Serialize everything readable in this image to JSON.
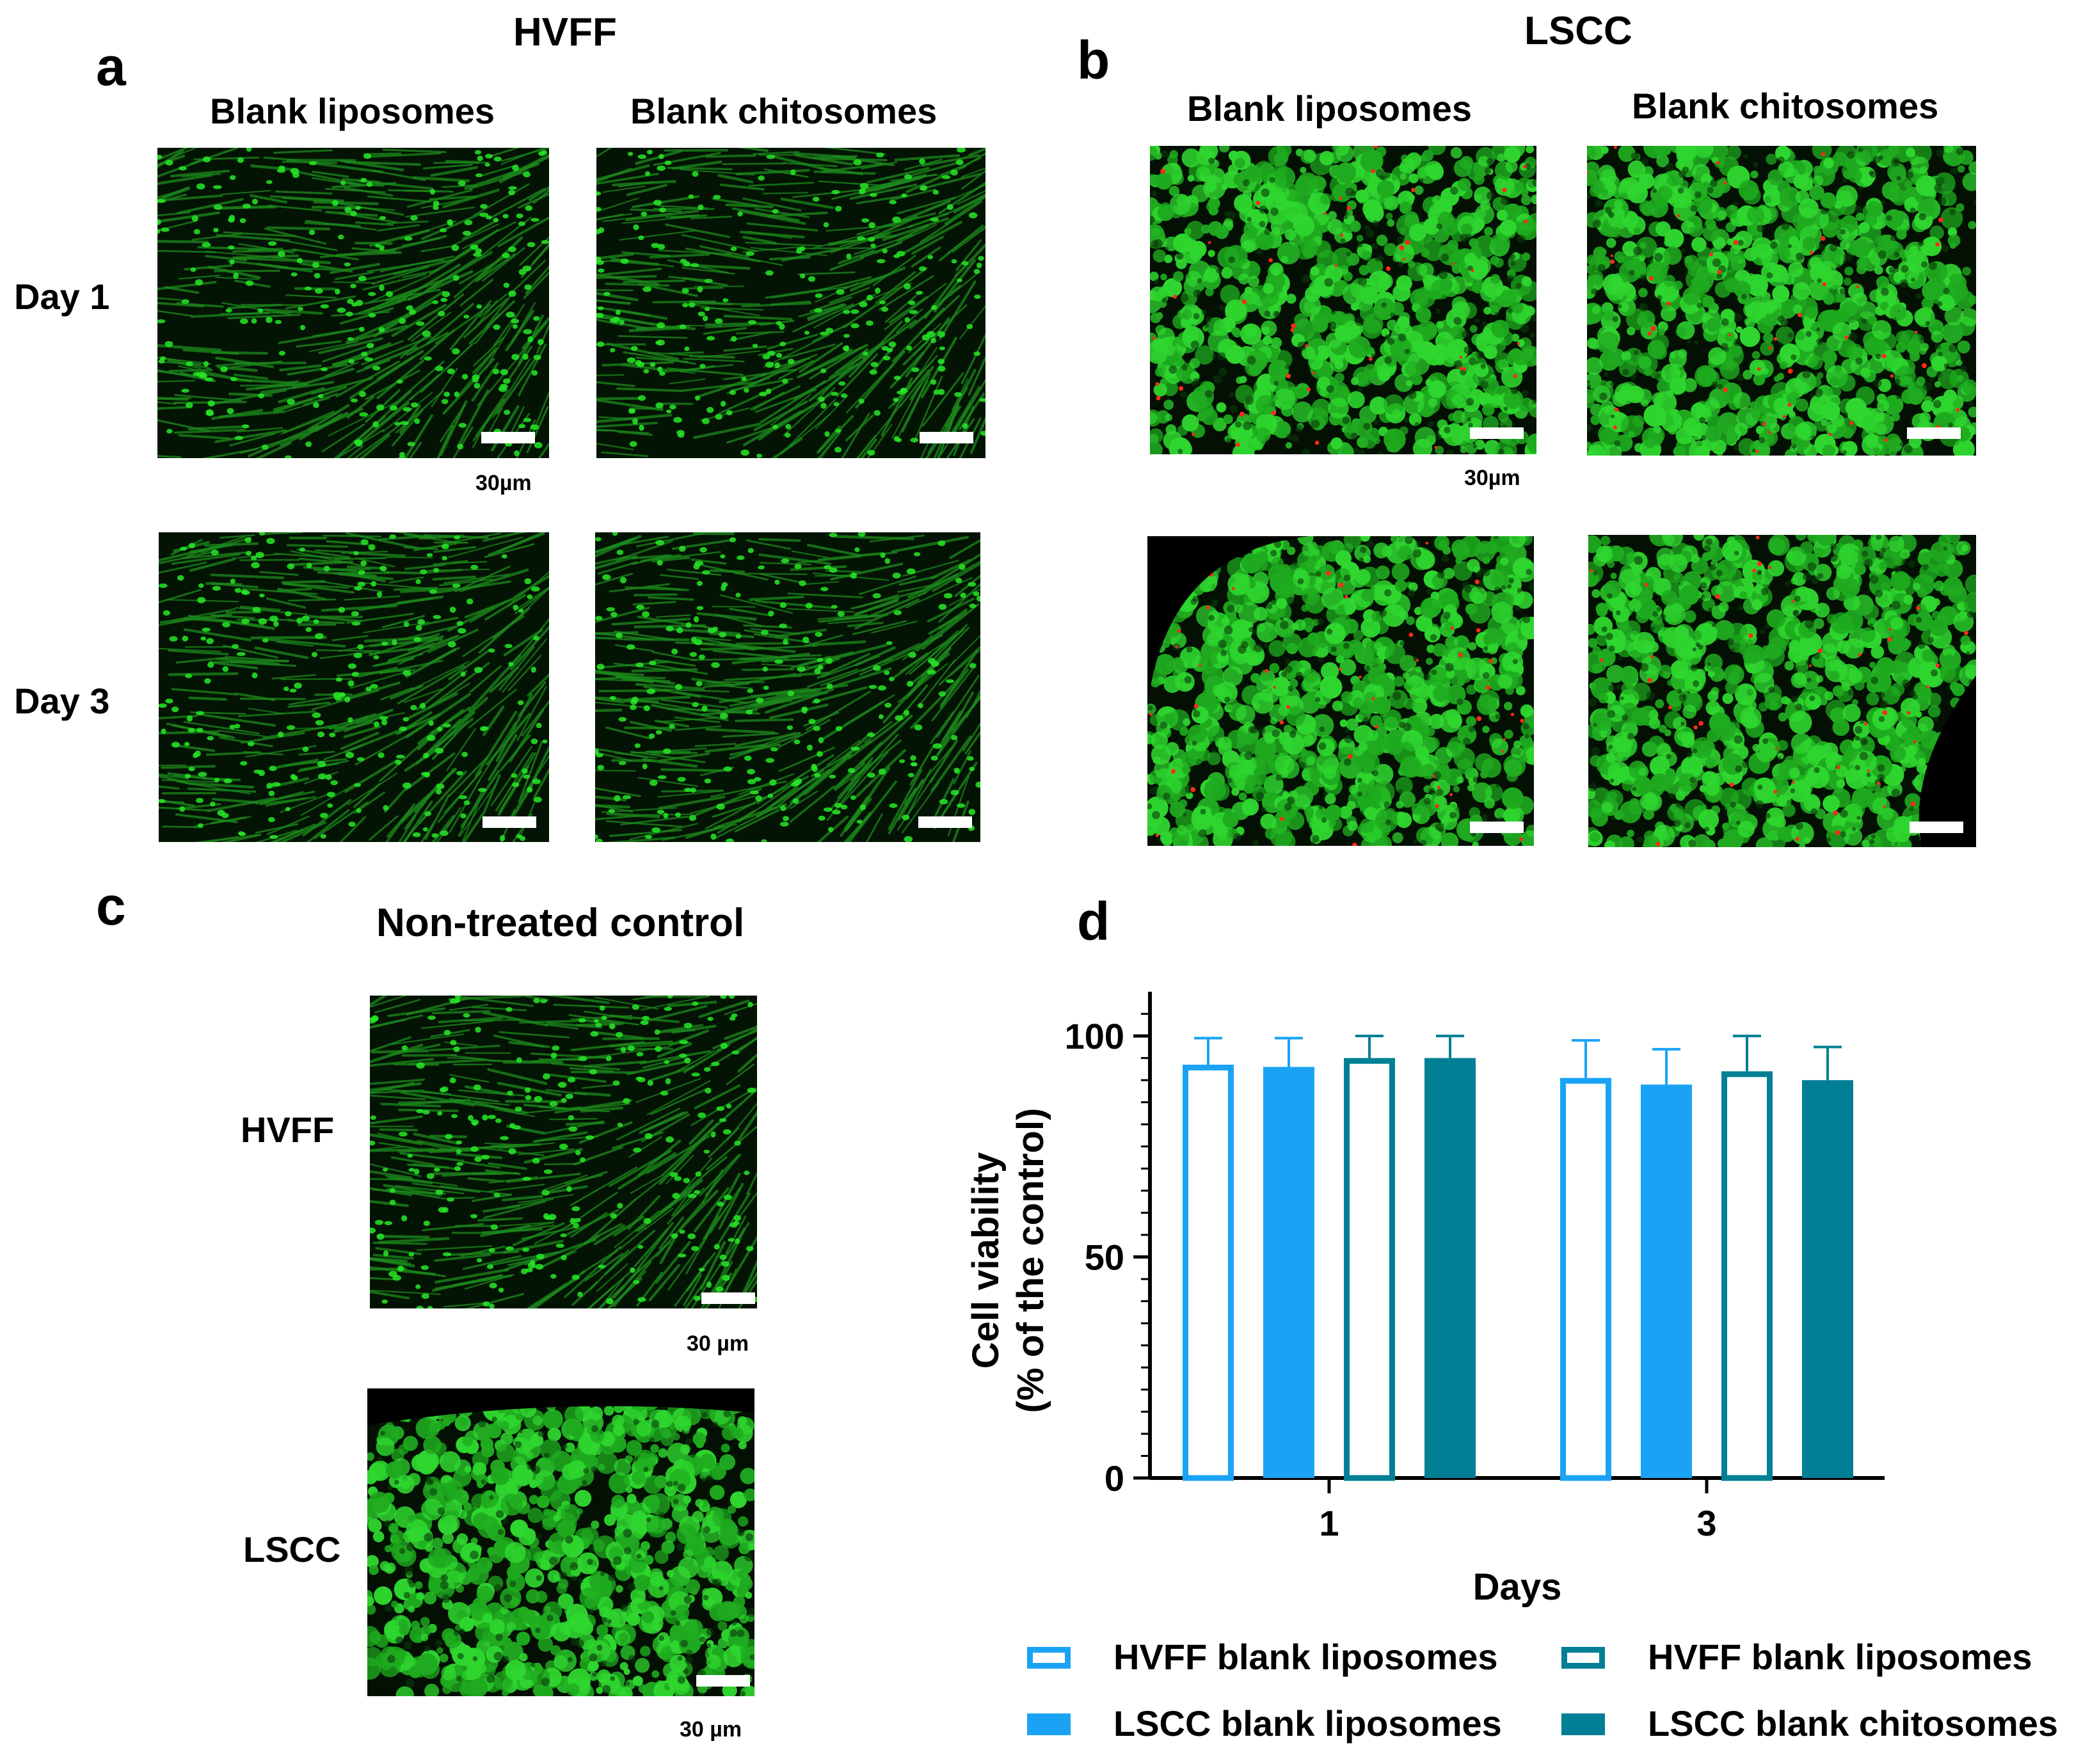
{
  "panels": {
    "a": {
      "letter": "a",
      "title": "HVFF",
      "columns": [
        "Blank liposomes",
        "Blank chitosomes"
      ],
      "rows": [
        "Day 1",
        "Day 3"
      ],
      "scale_label": "30µm"
    },
    "b": {
      "letter": "b",
      "title": "LSCC",
      "columns": [
        "Blank liposomes",
        "Blank chitosomes"
      ],
      "scale_label": "30µm"
    },
    "c": {
      "letter": "c",
      "title": "Non-treated control",
      "rows": [
        "HVFF",
        "LSCC"
      ],
      "scale_label_1": "30 µm",
      "scale_label_2": "30 µm"
    },
    "d": {
      "letter": "d"
    }
  },
  "colors": {
    "light_blue": "#1aa3f5",
    "teal": "#007f95",
    "fluor_green": "#27e827",
    "dead_red": "#ff2a1a"
  },
  "chart_data": {
    "type": "bar",
    "categories": [
      "1",
      "3"
    ],
    "xlabel": "Days",
    "ylabel_line1": "Cell viability",
    "ylabel_line2": "(% of the control)",
    "ylim": [
      0,
      110
    ],
    "yticks": [
      0,
      50,
      100
    ],
    "series": [
      {
        "name": "HVFF blank liposomes",
        "values": [
          93.5,
          90.5
        ],
        "errors": [
          6,
          8.5
        ],
        "fill": "hollow",
        "color": "#1aa3f5"
      },
      {
        "name": "LSCC blank liposomes",
        "values": [
          93,
          89
        ],
        "errors": [
          6.5,
          8
        ],
        "fill": "solid",
        "color": "#1aa3f5"
      },
      {
        "name": "HVFF blank liposomes",
        "values": [
          95,
          92
        ],
        "errors": [
          5,
          8
        ],
        "fill": "hollow",
        "color": "#007f95"
      },
      {
        "name": "LSCC blank chitosomes",
        "values": [
          95,
          90
        ],
        "errors": [
          5,
          7.5
        ],
        "fill": "solid",
        "color": "#007f95"
      }
    ],
    "legend_placement": "bottom"
  }
}
